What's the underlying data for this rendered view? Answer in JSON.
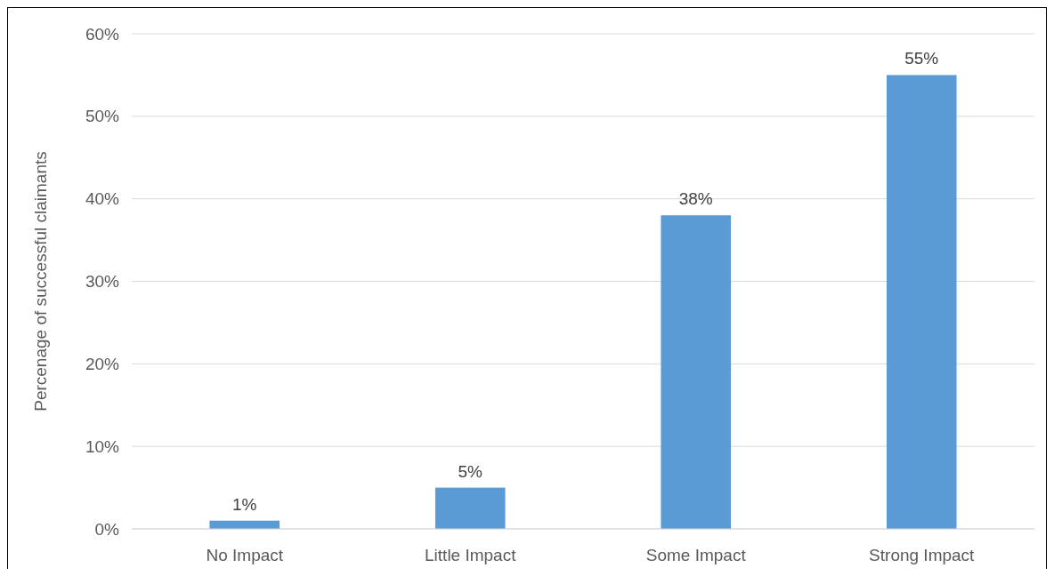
{
  "chart_data": {
    "type": "bar",
    "ylabel": "Percenage of successful claimants",
    "categories": [
      "No Impact",
      "Little Impact",
      "Some Impact",
      "Strong Impact"
    ],
    "values": [
      1,
      5,
      38,
      55
    ],
    "color": "#5b9bd5",
    "value_labels": [
      "1%",
      "5%",
      "38%",
      "55%"
    ],
    "ylim": [
      0,
      60
    ],
    "yticks": [
      {
        "value": 0,
        "label": "0%"
      },
      {
        "value": 10,
        "label": "10%"
      },
      {
        "value": 20,
        "label": "20%"
      },
      {
        "value": 30,
        "label": "30%"
      },
      {
        "value": 40,
        "label": "40%"
      },
      {
        "value": 50,
        "label": "50%"
      },
      {
        "value": 60,
        "label": "60%"
      }
    ],
    "grid": "y"
  }
}
